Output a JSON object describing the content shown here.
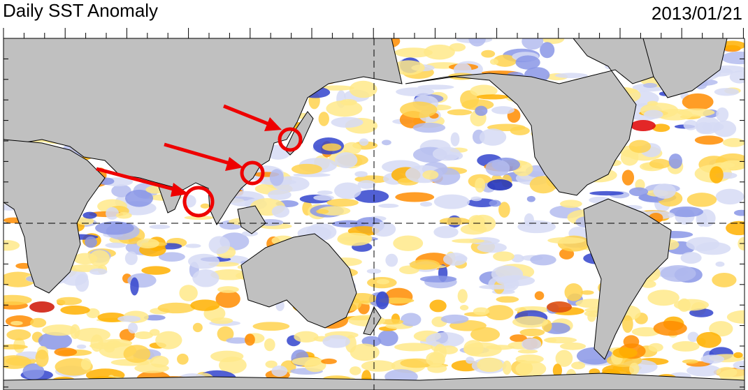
{
  "header": {
    "title": "Daily SST Anomaly",
    "date": "2013/01/21"
  }
}
